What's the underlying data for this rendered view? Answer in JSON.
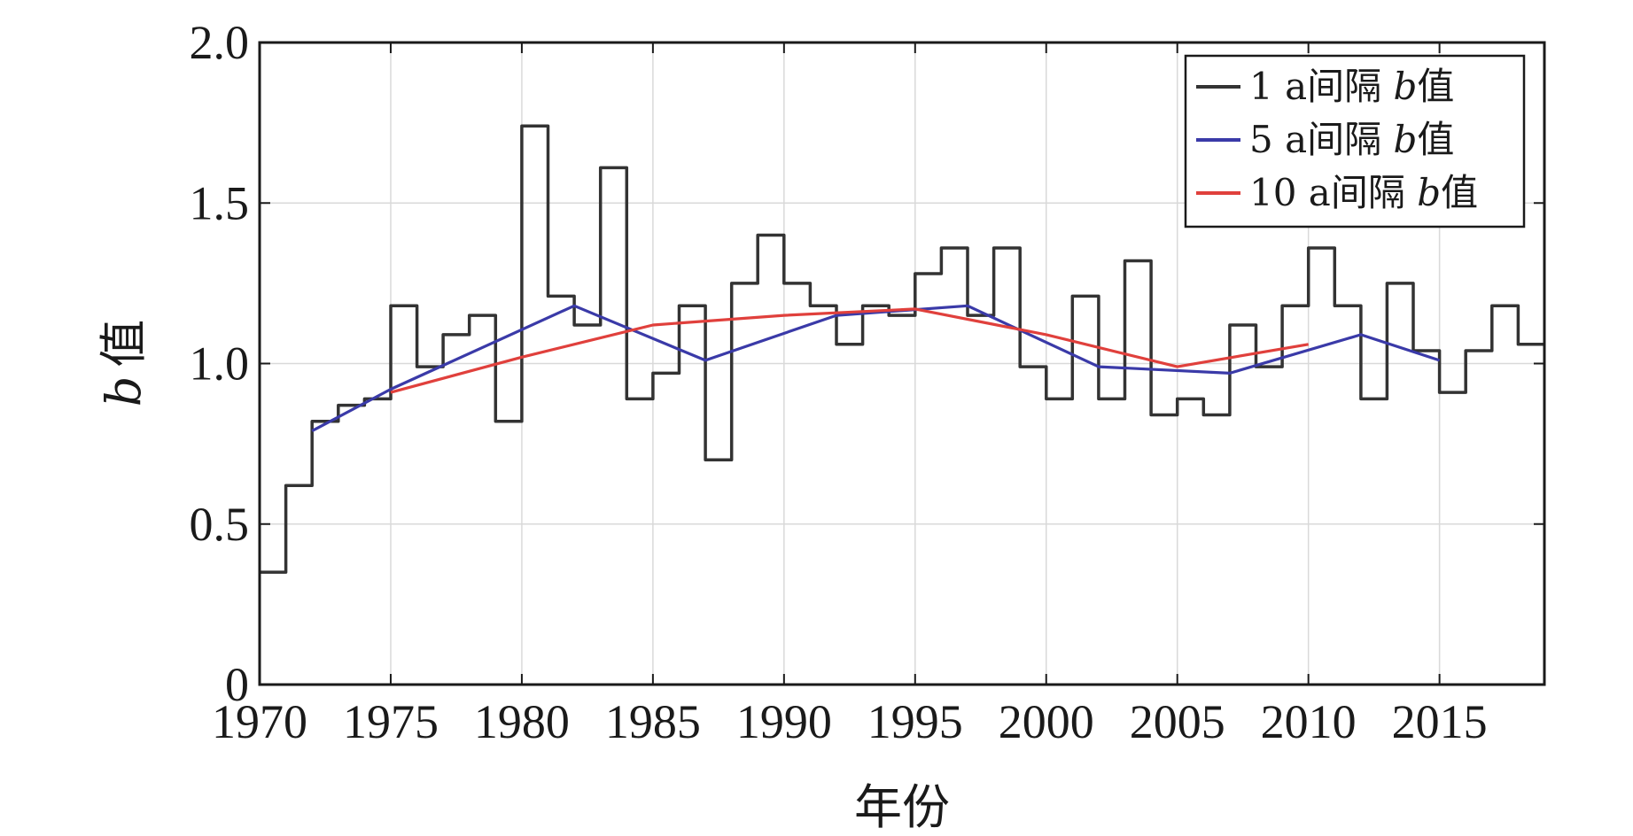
{
  "chart_data": {
    "type": "line",
    "title": "",
    "xlabel": "年份",
    "ylabel_italic": "b",
    "ylabel_suffix": "值",
    "xlim": [
      1970,
      2019
    ],
    "ylim": [
      0,
      2.0
    ],
    "xticks": [
      1970,
      1975,
      1980,
      1985,
      1990,
      1995,
      2000,
      2005,
      2010,
      2015
    ],
    "xtick_labels": [
      "1970",
      "1975",
      "1980",
      "1985",
      "1990",
      "1995",
      "2000",
      "2005",
      "2010",
      "2015"
    ],
    "yticks": [
      0,
      0.5,
      1.0,
      1.5,
      2.0
    ],
    "ytick_labels": [
      "0",
      "0.5",
      "1.0",
      "1.5",
      "2.0"
    ],
    "grid": true,
    "legend_position": "top-right",
    "series": [
      {
        "name": "1 a间隔 b值",
        "legend_prefix": "1 a间隔 ",
        "legend_italic": "b",
        "legend_suffix": "值",
        "style": "step",
        "color": "#333333",
        "x": [
          1970,
          1971,
          1972,
          1973,
          1974,
          1975,
          1976,
          1977,
          1978,
          1979,
          1980,
          1981,
          1982,
          1983,
          1984,
          1985,
          1986,
          1987,
          1988,
          1989,
          1990,
          1991,
          1992,
          1993,
          1994,
          1995,
          1996,
          1997,
          1998,
          1999,
          2000,
          2001,
          2002,
          2003,
          2004,
          2005,
          2006,
          2007,
          2008,
          2009,
          2010,
          2011,
          2012,
          2013,
          2014,
          2015,
          2016,
          2017,
          2018,
          2019
        ],
        "values": [
          0.35,
          0.62,
          0.82,
          0.87,
          0.89,
          1.18,
          0.99,
          1.09,
          1.15,
          0.82,
          1.74,
          1.21,
          1.12,
          1.61,
          0.89,
          0.97,
          1.18,
          0.7,
          1.25,
          1.4,
          1.25,
          1.18,
          1.06,
          1.18,
          1.15,
          1.28,
          1.36,
          1.15,
          1.36,
          0.99,
          0.89,
          1.21,
          0.89,
          1.32,
          0.84,
          0.89,
          0.84,
          1.12,
          0.99,
          1.18,
          1.36,
          1.18,
          0.89,
          1.25,
          1.04,
          0.91,
          1.04,
          1.18,
          1.06,
          1.06
        ]
      },
      {
        "name": "5 a间隔 b值",
        "legend_prefix": "5 a间隔 ",
        "legend_italic": "b",
        "legend_suffix": "值",
        "style": "line",
        "color": "#3a3aa8",
        "x": [
          1972,
          1975,
          1982,
          1987,
          1992,
          1997,
          2002,
          2007,
          2012,
          2015
        ],
        "values": [
          0.79,
          0.92,
          1.18,
          1.01,
          1.15,
          1.18,
          0.99,
          0.97,
          1.09,
          1.01
        ]
      },
      {
        "name": "10 a间隔 b值",
        "legend_prefix": "10 a间隔 ",
        "legend_italic": "b",
        "legend_suffix": "值",
        "style": "line",
        "color": "#e0403c",
        "x": [
          1975,
          1980,
          1985,
          1990,
          1995,
          2000,
          2005,
          2010
        ],
        "values": [
          0.91,
          1.02,
          1.12,
          1.15,
          1.17,
          1.09,
          0.99,
          1.06
        ]
      }
    ]
  }
}
